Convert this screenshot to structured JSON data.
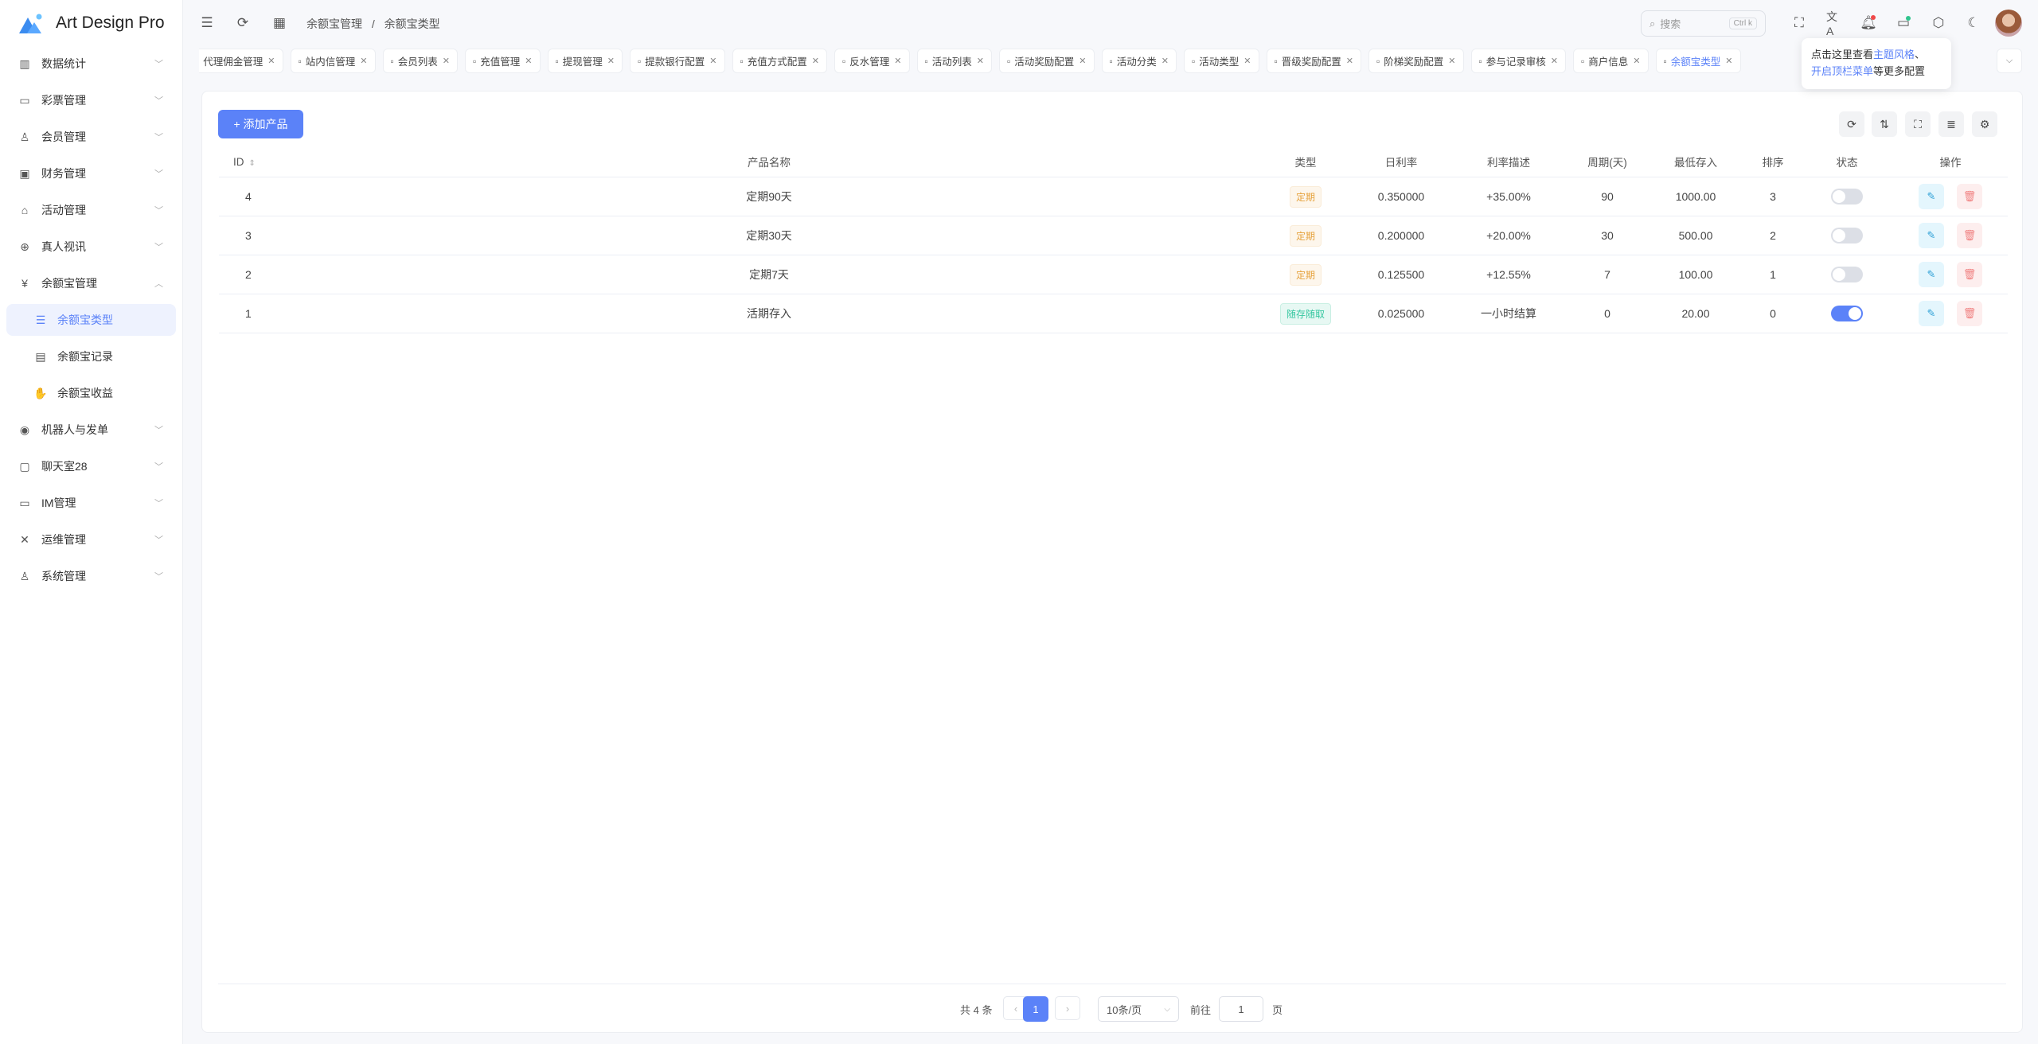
{
  "app": {
    "title": "Art Design Pro",
    "accent": "#5b82f8"
  },
  "sidebar": {
    "items": [
      {
        "label": "数据统计",
        "icon": "chart-icon"
      },
      {
        "label": "彩票管理",
        "icon": "ticket-icon"
      },
      {
        "label": "会员管理",
        "icon": "user-icon"
      },
      {
        "label": "财务管理",
        "icon": "wallet-icon"
      },
      {
        "label": "活动管理",
        "icon": "gift-icon"
      },
      {
        "label": "真人视讯",
        "icon": "gamepad-icon"
      },
      {
        "label": "余额宝管理",
        "icon": "yen-box-icon",
        "expanded": true,
        "children": [
          {
            "label": "余额宝类型",
            "icon": "settings-list-icon",
            "active": true
          },
          {
            "label": "余额宝记录",
            "icon": "document-icon"
          },
          {
            "label": "余额宝收益",
            "icon": "hand-coin-icon"
          }
        ]
      },
      {
        "label": "机器人与发单",
        "icon": "robot-icon"
      },
      {
        "label": "聊天室28",
        "icon": "chat-box-icon"
      },
      {
        "label": "IM管理",
        "icon": "message-icon"
      },
      {
        "label": "运维管理",
        "icon": "tools-icon"
      },
      {
        "label": "系统管理",
        "icon": "user-icon"
      }
    ]
  },
  "header": {
    "breadcrumb": [
      "余额宝管理",
      "/",
      "余额宝类型"
    ],
    "search_placeholder": "搜索",
    "search_shortcut": "Ctrl k"
  },
  "tooltip": {
    "prefix": "点击这里查看",
    "link1": "主题风格",
    "sep": "、",
    "link2": "开启顶栏菜单",
    "suffix": "等更多配置"
  },
  "tabs": [
    "代理佣金管理",
    "站内信管理",
    "会员列表",
    "充值管理",
    "提现管理",
    "提款银行配置",
    "充值方式配置",
    "反水管理",
    "活动列表",
    "活动奖励配置",
    "活动分类",
    "活动类型",
    "晋级奖励配置",
    "阶梯奖励配置",
    "参与记录审核",
    "商户信息",
    "余额宝类型"
  ],
  "main": {
    "add_button": "+ 添加产品",
    "columns": [
      "ID",
      "产品名称",
      "",
      "类型",
      "日利率",
      "利率描述",
      "周期(天)",
      "最低存入",
      "排序",
      "状态",
      "操作"
    ],
    "rows": [
      {
        "id": "4",
        "name": "定期90天",
        "type": "定期",
        "rate": "0.350000",
        "desc": "+35.00%",
        "period": "90",
        "min": "1000.00",
        "sort": "3",
        "enabled": false
      },
      {
        "id": "3",
        "name": "定期30天",
        "type": "定期",
        "rate": "0.200000",
        "desc": "+20.00%",
        "period": "30",
        "min": "500.00",
        "sort": "2",
        "enabled": false
      },
      {
        "id": "2",
        "name": "定期7天",
        "type": "定期",
        "rate": "0.125500",
        "desc": "+12.55%",
        "period": "7",
        "min": "100.00",
        "sort": "1",
        "enabled": false
      },
      {
        "id": "1",
        "name": "活期存入",
        "type": "随存随取",
        "rate": "0.025000",
        "desc": "一小时结算",
        "period": "0",
        "min": "20.00",
        "sort": "0",
        "enabled": true
      }
    ]
  },
  "pagination": {
    "total": "共 4 条",
    "current": "1",
    "page_size": "10条/页",
    "goto_label": "前往",
    "goto_value": "1",
    "page_suffix": "页"
  }
}
